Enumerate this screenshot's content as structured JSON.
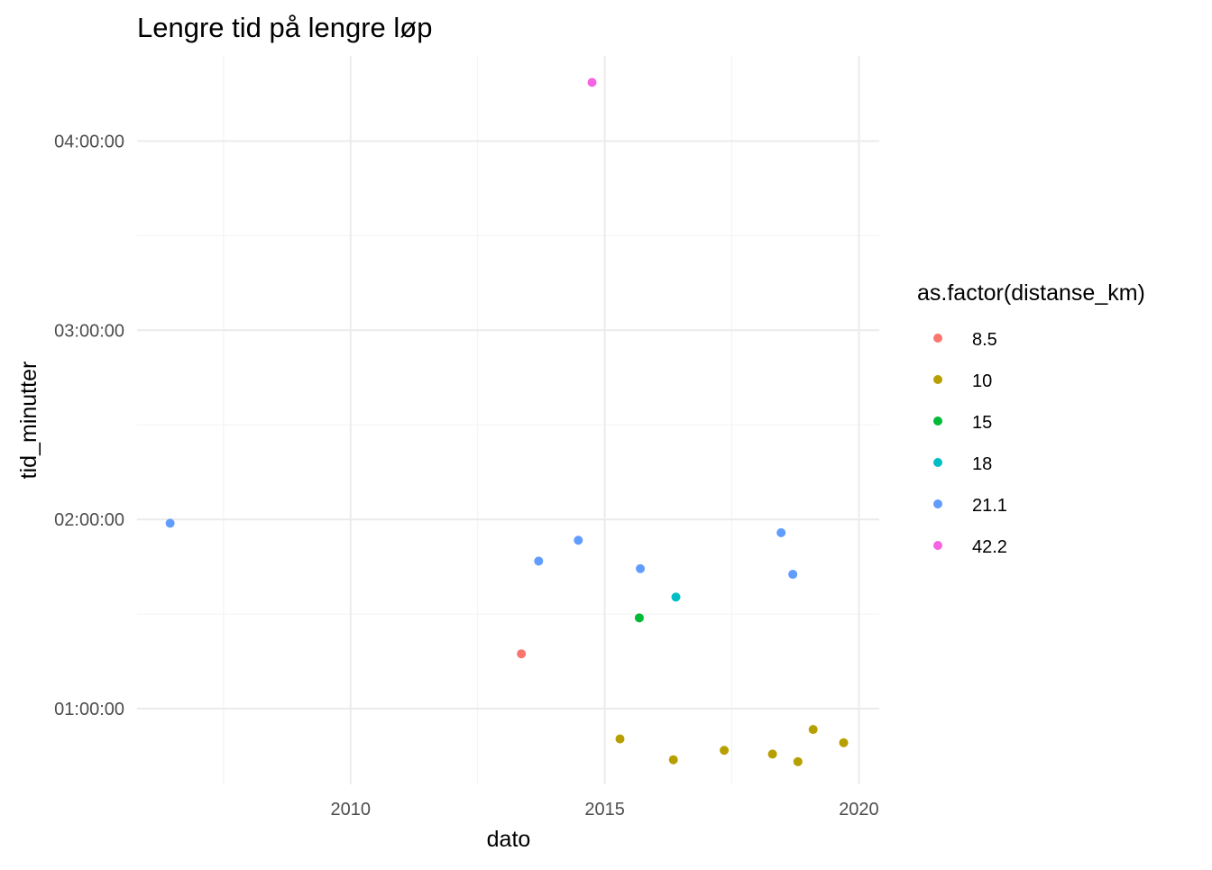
{
  "chart_data": {
    "type": "scatter",
    "title": "Lengre tid på lengre løp",
    "xlabel": "dato",
    "ylabel": "tid_minutter",
    "xlim": [
      2005.8,
      2020.4
    ],
    "ylim": [
      0.6,
      4.45
    ],
    "x_ticks": [
      {
        "value": 2010,
        "label": "2010"
      },
      {
        "value": 2015,
        "label": "2015"
      },
      {
        "value": 2020,
        "label": "2020"
      }
    ],
    "y_ticks": [
      {
        "value": 1,
        "label": "01:00:00"
      },
      {
        "value": 2,
        "label": "02:00:00"
      },
      {
        "value": 3,
        "label": "03:00:00"
      },
      {
        "value": 4,
        "label": "04:00:00"
      }
    ],
    "x_minor": [
      2007.5,
      2012.5,
      2017.5
    ],
    "y_minor": [
      1.5,
      2.5,
      3.5
    ],
    "grid": true,
    "legend": {
      "title": "as.factor(distanse_km)",
      "position": "right"
    },
    "series": [
      {
        "name": "8.5",
        "color": "#F8766D",
        "points": [
          [
            2013.36,
            1.29
          ]
        ]
      },
      {
        "name": "10",
        "color": "#B79F00",
        "points": [
          [
            2015.3,
            0.84
          ],
          [
            2016.35,
            0.73
          ],
          [
            2017.35,
            0.78
          ],
          [
            2018.3,
            0.76
          ],
          [
            2018.8,
            0.72
          ],
          [
            2019.1,
            0.89
          ],
          [
            2019.7,
            0.82
          ]
        ]
      },
      {
        "name": "15",
        "color": "#00BA38",
        "points": [
          [
            2015.68,
            1.48
          ]
        ]
      },
      {
        "name": "18",
        "color": "#00BFC4",
        "points": [
          [
            2016.4,
            1.59
          ]
        ]
      },
      {
        "name": "21.1",
        "color": "#619CFF",
        "points": [
          [
            2006.45,
            1.98
          ],
          [
            2013.7,
            1.78
          ],
          [
            2014.48,
            1.89
          ],
          [
            2015.7,
            1.74
          ],
          [
            2018.47,
            1.93
          ],
          [
            2018.7,
            1.71
          ]
        ]
      },
      {
        "name": "42.2",
        "color": "#F564E3",
        "points": [
          [
            2014.75,
            4.31
          ]
        ]
      }
    ]
  }
}
